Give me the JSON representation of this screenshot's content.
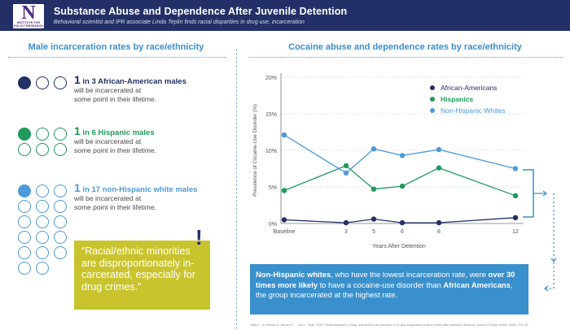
{
  "header": {
    "logo_letter": "N",
    "logo_text_1": "INSTITUTE FOR",
    "logo_text_2": "POLICY RESEARCH",
    "title": "Substance Abuse and Dependence After Juvenile Detention",
    "subtitle": "Behavioral scientist and IPR associate Linda Teplin finds racial disparities in drug use, incarceration"
  },
  "left": {
    "title": "Male incarceration rates by race/ethnicity",
    "stats": [
      {
        "prefix": "1",
        "in_text": " in 3 ",
        "group": "African-American males",
        "line2": "will be incarcerated at",
        "line3": "some point in their lifetime.",
        "color": "#233067"
      },
      {
        "prefix": "1",
        "in_text": " in 6 ",
        "group": "Hispanic males",
        "line2": "will be incarcerated at",
        "line3": "some point in their lifetime.",
        "color": "#1e9a5c"
      },
      {
        "prefix": "1",
        "in_text": " in 17 ",
        "group": "non-Hispanic white males",
        "line2": "will be incarcerated at",
        "line3": "some point in their lifetime.",
        "color": "#4e9ad8"
      }
    ],
    "quote": "“Racial/ethnic minorities are disproportionately in­carcerated, especially for drug crimes.”",
    "bang": "!"
  },
  "right": {
    "title": "Cocaine abuse and dependence rates by race/ethnicity",
    "bottom_bold_1": "Non-Hispanic whites",
    "bottom_text_1": ", who have the lowest incarceration rate, were ",
    "bottom_bold_2": "over 30 times more likely",
    "bottom_text_2": " to have a cocaine-use disorder than ",
    "bottom_bold_3": "African Americans",
    "bottom_text_3": ", the group incarcerated at the highest rate.",
    "citation": "Welty L., & Harrison A., Abram K., ... and L. Teplin. 2016. Health disparities in drug- and alcohol-use disorders: A 12-year longitudinal study of youths after detention. American Journal of Public Health 106(5): 872–80."
  },
  "chart_data": {
    "type": "line",
    "x": [
      0,
      3,
      5,
      6,
      8,
      12
    ],
    "x_tick_labels": [
      "Baseline",
      "3",
      "5",
      "6",
      "8",
      "12"
    ],
    "xlabel": "Years After Detention",
    "ylabel": "Prevalence of Cocaine-Use Disorder (%)",
    "ylim": [
      0,
      20
    ],
    "y_ticks": [
      0,
      5,
      10,
      15,
      20
    ],
    "y_tick_labels": [
      "0%",
      "5%",
      "10%",
      "15%",
      "20%"
    ],
    "grid": true,
    "legend": "top-right",
    "series": [
      {
        "name": "African-Americans",
        "color": "#233067",
        "values": [
          0.5,
          0.1,
          0.6,
          0.1,
          0.1,
          0.8
        ]
      },
      {
        "name": "Hispanics",
        "color": "#1e9a5c",
        "values": [
          4.5,
          7.9,
          4.7,
          5.1,
          7.6,
          3.8
        ]
      },
      {
        "name": "Non-Hispanic Whites",
        "color": "#4e9ad8",
        "values": [
          12.1,
          6.9,
          10.2,
          9.3,
          10.1,
          7.5
        ]
      }
    ]
  }
}
